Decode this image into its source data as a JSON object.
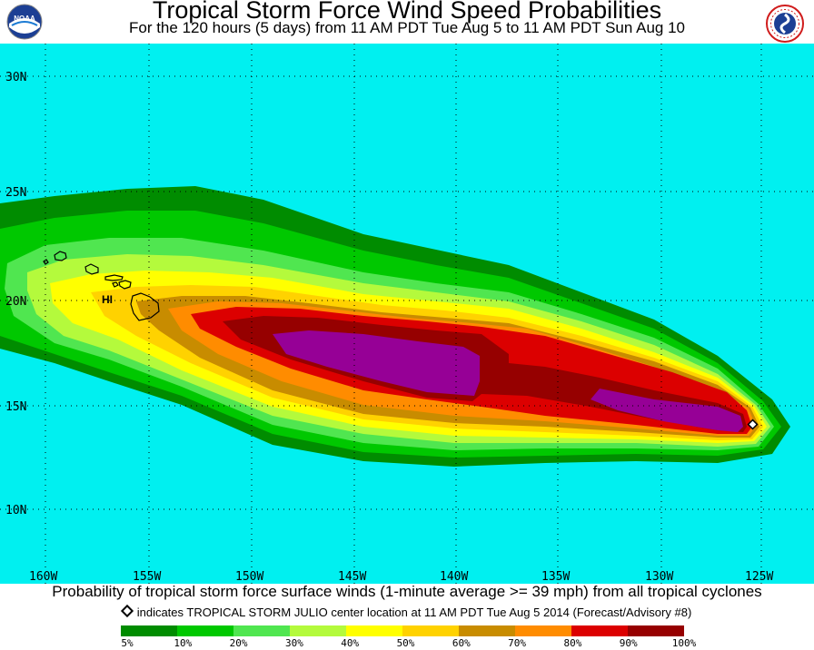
{
  "header": {
    "title": "Tropical Storm Force Wind Speed Probabilities",
    "subtitle": "For the 120 hours (5 days) from 11 AM PDT Tue Aug 5 to 11 AM PDT Sun Aug 10"
  },
  "logos": {
    "left": "NOAA",
    "right": "NATIONAL WEATHER SERVICE"
  },
  "map": {
    "ocean_color": "#00f0f0",
    "lat_labels": [
      "30N",
      "25N",
      "20N",
      "15N",
      "10N"
    ],
    "lon_labels": [
      "160W",
      "155W",
      "150W",
      "145W",
      "140W",
      "135W",
      "130W",
      "125W"
    ],
    "region_label": "HI"
  },
  "footer": {
    "caption": "Probability of tropical storm force surface winds (1-minute average >= 39 mph) from all tropical cyclones",
    "note": "indicates TROPICAL STORM JULIO center location at 11 AM PDT Tue Aug 5 2014 (Forecast/Advisory #8)"
  },
  "legend": {
    "labels": [
      "5%",
      "10%",
      "20%",
      "30%",
      "40%",
      "50%",
      "60%",
      "70%",
      "80%",
      "90%",
      "100%"
    ],
    "colors": [
      "#008c00",
      "#00c800",
      "#50e650",
      "#b4fa3c",
      "#ffff00",
      "#ffd200",
      "#c88c00",
      "#ff8c00",
      "#dc0000",
      "#960000",
      "#960096"
    ]
  }
}
